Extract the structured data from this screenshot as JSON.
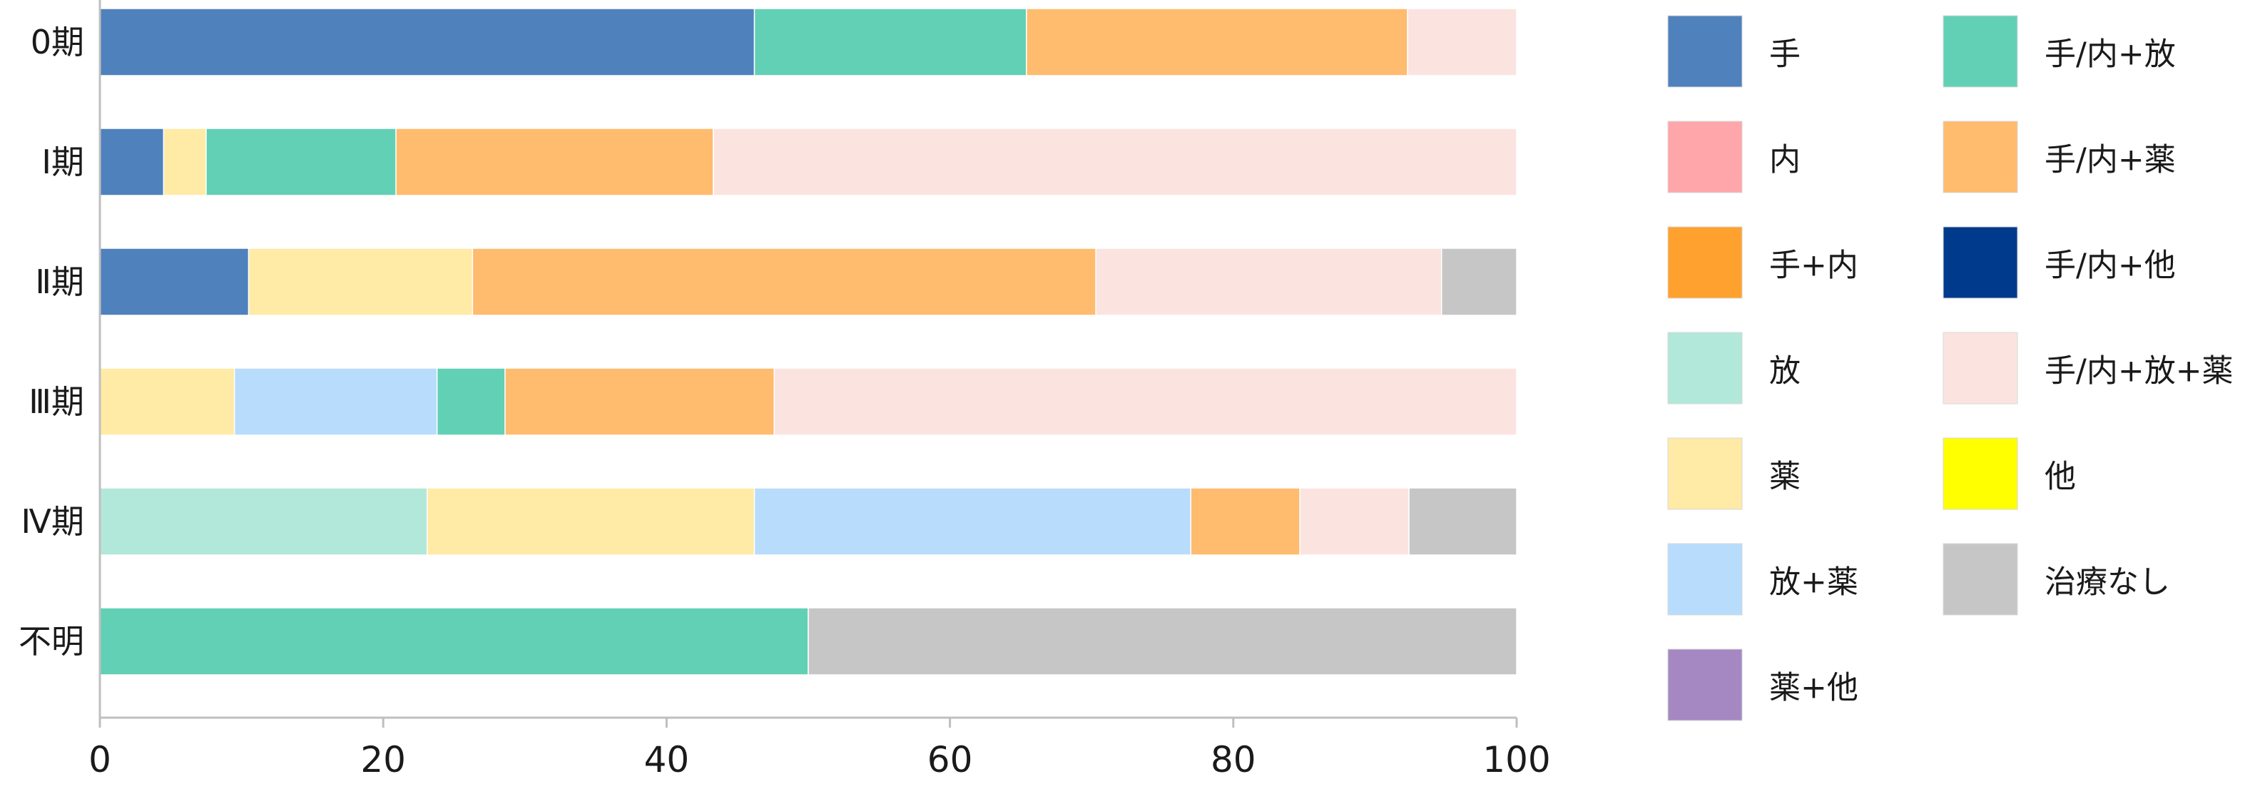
{
  "chart_data": {
    "type": "bar",
    "orientation": "horizontal",
    "stacked": true,
    "categories": [
      "0期",
      "Ⅰ期",
      "Ⅱ期",
      "Ⅲ期",
      "Ⅳ期",
      "不明"
    ],
    "xlim": [
      0,
      100
    ],
    "xticks": [
      "0",
      "20",
      "40",
      "60",
      "80",
      "100"
    ],
    "grid": false,
    "legend_position": "right",
    "series": [
      {
        "name": "手",
        "color": "#4f81bd",
        "values": [
          46.2,
          4.5,
          10.5,
          0,
          0,
          0
        ]
      },
      {
        "name": "内",
        "color": "#ffa6ab",
        "values": [
          0,
          0,
          0,
          0,
          0,
          0
        ]
      },
      {
        "name": "手+内",
        "color": "#ffa12e",
        "values": [
          0,
          0,
          0,
          0,
          0,
          0
        ]
      },
      {
        "name": "放",
        "color": "#b1e8d9",
        "values": [
          0,
          0,
          0,
          0,
          23.1,
          0
        ]
      },
      {
        "name": "薬",
        "color": "#ffeaa6",
        "values": [
          0,
          3.0,
          15.8,
          9.5,
          23.1,
          0
        ]
      },
      {
        "name": "放+薬",
        "color": "#b8dcfc",
        "values": [
          0,
          0,
          0,
          14.3,
          30.8,
          0
        ]
      },
      {
        "name": "薬+他",
        "color": "#a588c1",
        "values": [
          0,
          0,
          0,
          0,
          0,
          0
        ]
      },
      {
        "name": "手/内+放",
        "color": "#62d0b5",
        "values": [
          19.2,
          13.4,
          0,
          4.8,
          0,
          50.0
        ]
      },
      {
        "name": "手/内+薬",
        "color": "#ffbb6e",
        "values": [
          26.9,
          22.4,
          44.0,
          19.0,
          7.7,
          0
        ]
      },
      {
        "name": "手/内+他",
        "color": "#003a8c",
        "values": [
          0,
          0,
          0,
          0,
          0,
          0
        ]
      },
      {
        "name": "手/内+放+薬",
        "color": "#fbe4e0",
        "values": [
          7.7,
          56.7,
          24.4,
          52.4,
          7.7,
          0
        ]
      },
      {
        "name": "他",
        "color": "#ffff00",
        "values": [
          0,
          0,
          0,
          0,
          0,
          0
        ]
      },
      {
        "name": "治療なし",
        "color": "#c6c6c6",
        "values": [
          0,
          0,
          5.3,
          0,
          7.6,
          50.0
        ]
      }
    ],
    "legend_columns": [
      [
        "手",
        "内",
        "手+内",
        "放",
        "薬",
        "放+薬",
        "薬+他"
      ],
      [
        "手/内+放",
        "手/内+薬",
        "手/内+他",
        "手/内+放+薬",
        "他",
        "治療なし"
      ]
    ]
  }
}
